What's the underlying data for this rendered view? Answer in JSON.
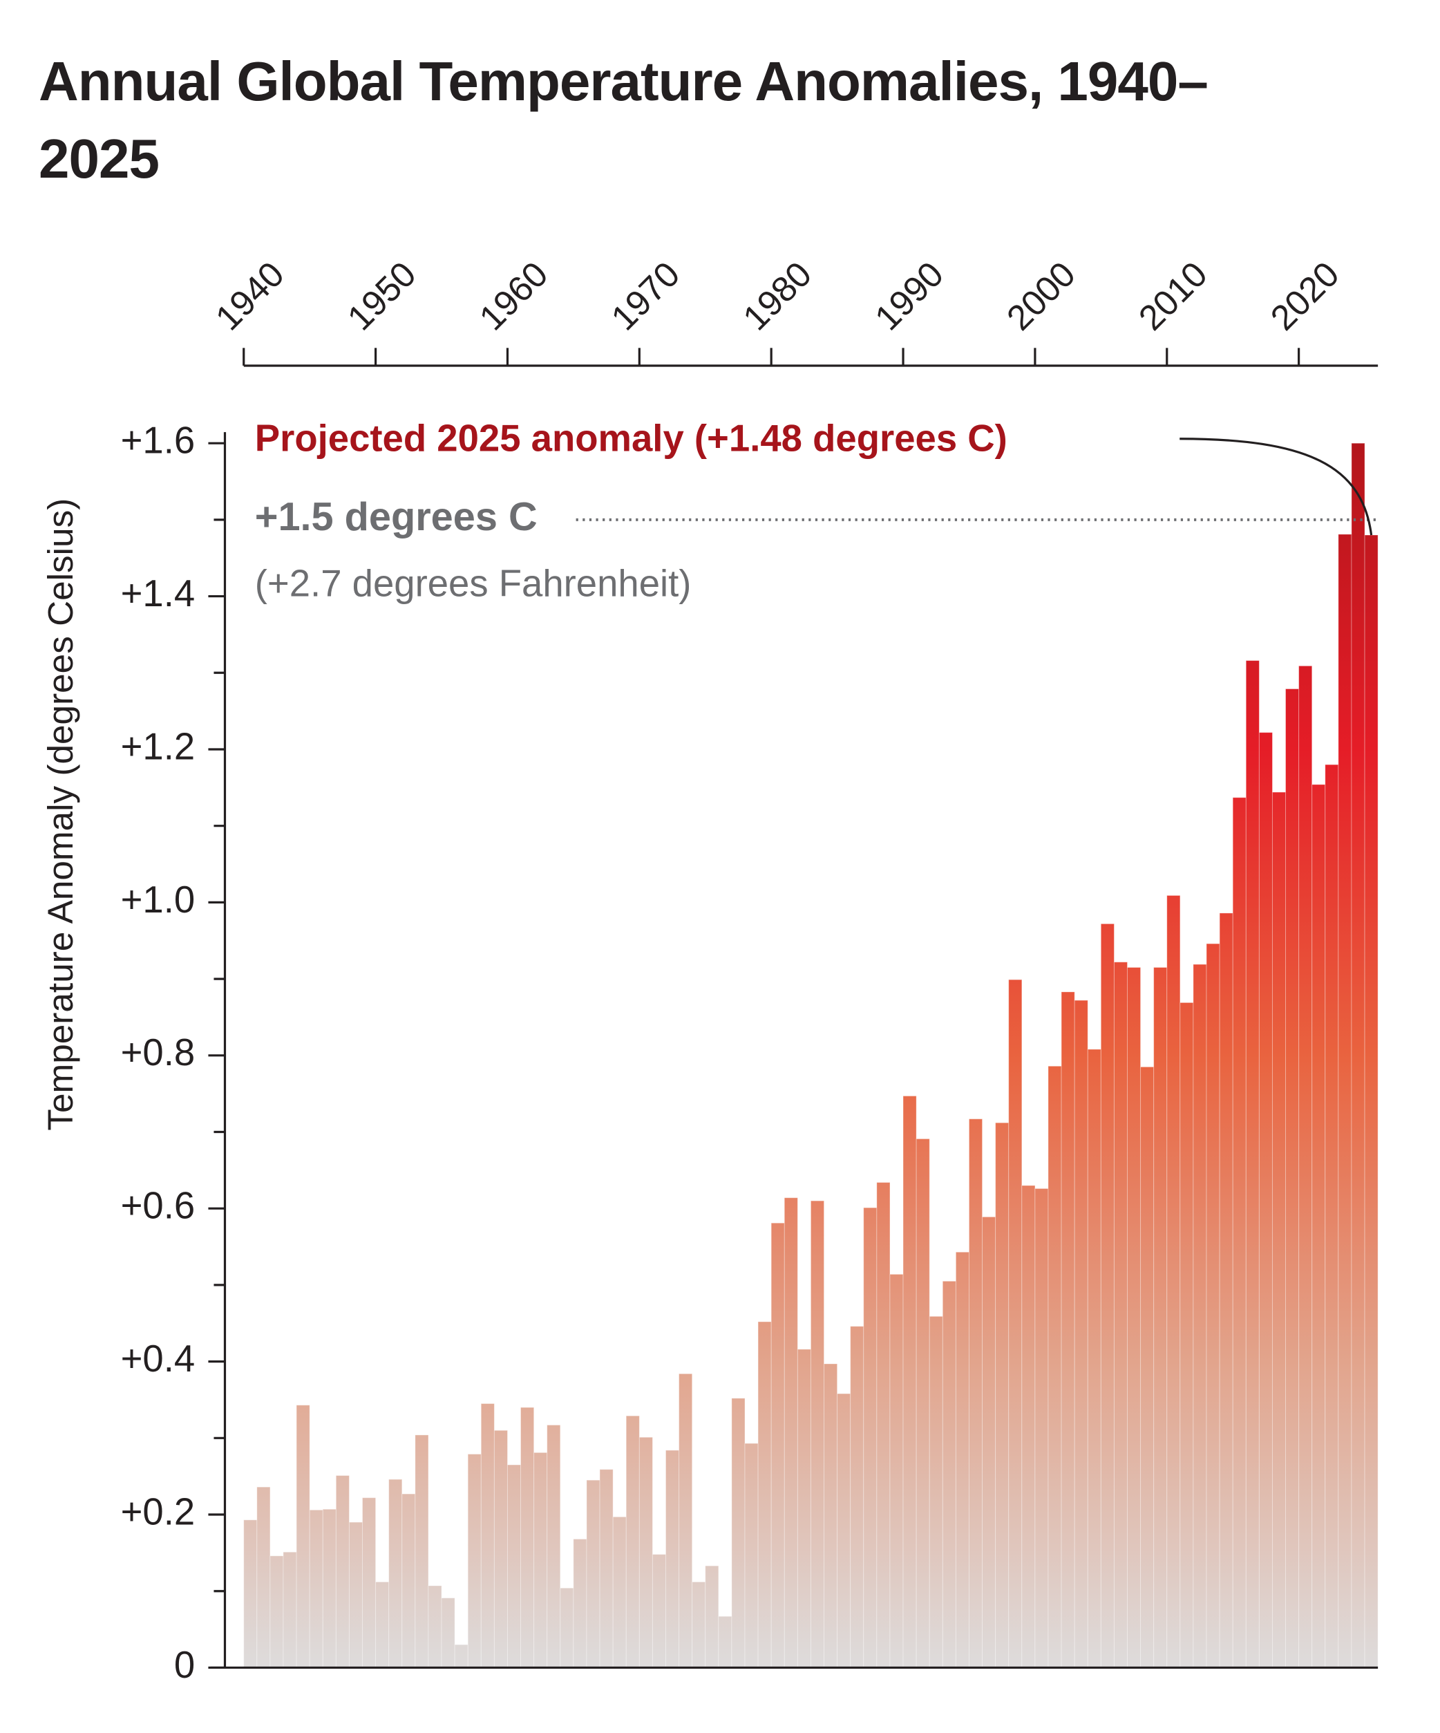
{
  "chart_data": {
    "type": "bar",
    "title": "Annual Global Temperature Anomalies, 1940–2025",
    "y_label": "Temperature Anomaly (degrees Celsius)",
    "x": [
      1940,
      1941,
      1942,
      1943,
      1944,
      1945,
      1946,
      1947,
      1948,
      1949,
      1950,
      1951,
      1952,
      1953,
      1954,
      1955,
      1956,
      1957,
      1958,
      1959,
      1960,
      1961,
      1962,
      1963,
      1964,
      1965,
      1966,
      1967,
      1968,
      1969,
      1970,
      1971,
      1972,
      1973,
      1974,
      1975,
      1976,
      1977,
      1978,
      1979,
      1980,
      1981,
      1982,
      1983,
      1984,
      1985,
      1986,
      1987,
      1988,
      1989,
      1990,
      1991,
      1992,
      1993,
      1994,
      1995,
      1996,
      1997,
      1998,
      1999,
      2000,
      2001,
      2002,
      2003,
      2004,
      2005,
      2006,
      2007,
      2008,
      2009,
      2010,
      2011,
      2012,
      2013,
      2014,
      2015,
      2016,
      2017,
      2018,
      2019,
      2020,
      2021,
      2022,
      2023,
      2024,
      2025
    ],
    "values": [
      0.193,
      0.236,
      0.146,
      0.151,
      0.343,
      0.206,
      0.207,
      0.251,
      0.19,
      0.222,
      0.112,
      0.246,
      0.227,
      0.304,
      0.107,
      0.091,
      0.03,
      0.279,
      0.345,
      0.31,
      0.265,
      0.34,
      0.281,
      0.317,
      0.104,
      0.168,
      0.245,
      0.259,
      0.197,
      0.329,
      0.301,
      0.148,
      0.284,
      0.384,
      0.112,
      0.133,
      0.067,
      0.352,
      0.293,
      0.452,
      0.581,
      0.614,
      0.416,
      0.61,
      0.397,
      0.358,
      0.446,
      0.601,
      0.634,
      0.514,
      0.747,
      0.691,
      0.459,
      0.505,
      0.543,
      0.717,
      0.589,
      0.712,
      0.899,
      0.63,
      0.626,
      0.786,
      0.883,
      0.872,
      0.808,
      0.972,
      0.922,
      0.915,
      0.785,
      0.915,
      1.009,
      0.869,
      0.919,
      0.946,
      0.986,
      1.137,
      1.316,
      1.222,
      1.144,
      1.279,
      1.309,
      1.154,
      1.18,
      1.481,
      1.6,
      1.48
    ],
    "color_gradient": [
      "#dedcdc",
      "#e2a48c",
      "#e9633f",
      "#e51d27",
      "#b3151b"
    ],
    "xlim": [
      1940,
      2026
    ],
    "xticks": [
      1940,
      1950,
      1960,
      1970,
      1980,
      1990,
      2000,
      2010,
      2020
    ],
    "ylim": [
      0,
      1.6
    ],
    "yticks": [
      0,
      {
        "value": 0.2,
        "label": "+0.2"
      },
      {
        "value": 0.4,
        "label": "+0.4"
      },
      {
        "value": 0.6,
        "label": "+0.6"
      },
      {
        "value": 0.8,
        "label": "+0.8"
      },
      {
        "value": 1.0,
        "label": "+1.0"
      },
      {
        "value": 1.2,
        "label": "+1.2"
      },
      {
        "value": 1.4,
        "label": "+1.4"
      },
      {
        "value": 1.6,
        "label": "+1.6"
      }
    ],
    "yticks_minor": [
      0.1,
      0.3,
      0.5,
      0.7,
      0.9,
      1.1,
      1.3,
      1.5
    ],
    "reference_line": {
      "value": 1.5,
      "label": "+1.5 degrees C",
      "sublabel": "(+2.7 degrees Fahrenheit)",
      "color": "#6d6e71"
    },
    "annotation": {
      "text": "Projected 2025 anomaly (+1.48 degrees C)",
      "color": "#a6141b"
    }
  }
}
